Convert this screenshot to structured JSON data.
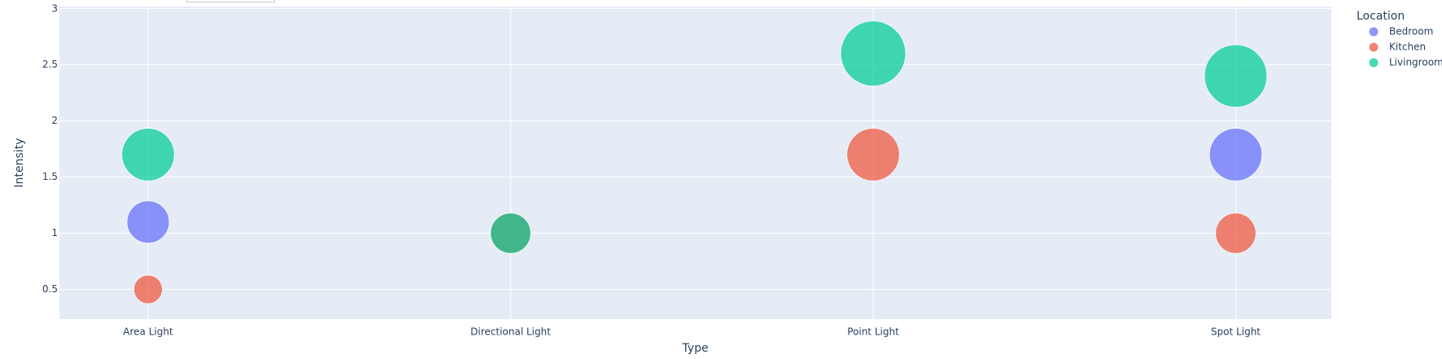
{
  "chart_data": {
    "type": "scatter",
    "bubble": true,
    "xlabel": "Type",
    "ylabel": "Intensity",
    "categories": [
      "Area Light",
      "Directional Light",
      "Point Light",
      "Spot Light"
    ],
    "ylim": [
      0.25,
      3
    ],
    "yticks": [
      0.5,
      1,
      1.5,
      2,
      2.5,
      3
    ],
    "ytick_labels": [
      "0.5",
      "1",
      "1.5",
      "2",
      "2.5",
      "3"
    ],
    "grid": true,
    "legend": {
      "title": "Location",
      "position": "top-right",
      "items": [
        "Bedroom",
        "Kitchen",
        "Livingroom"
      ]
    },
    "plot_background": "#e5ecf6",
    "series": [
      {
        "name": "Bedroom",
        "color": "#636efa",
        "points": [
          {
            "x": "Area Light",
            "y": 1.1,
            "size": 1.1
          },
          {
            "x": "Spot Light",
            "y": 1.7,
            "size": 1.7
          }
        ]
      },
      {
        "name": "Kitchen",
        "color": "#ef553b",
        "points": [
          {
            "x": "Area Light",
            "y": 0.5,
            "size": 0.5
          },
          {
            "x": "Directional Light",
            "y": 1.0,
            "size": 1.0
          },
          {
            "x": "Point Light",
            "y": 1.7,
            "size": 1.7
          },
          {
            "x": "Spot Light",
            "y": 1.0,
            "size": 1.0
          }
        ]
      },
      {
        "name": "Livingroom",
        "color": "#00cc96",
        "points": [
          {
            "x": "Area Light",
            "y": 1.7,
            "size": 1.7
          },
          {
            "x": "Directional Light",
            "y": 1.0,
            "size": 1.0
          },
          {
            "x": "Point Light",
            "y": 2.6,
            "size": 2.6
          },
          {
            "x": "Spot Light",
            "y": 2.4,
            "size": 2.4
          }
        ]
      }
    ]
  }
}
